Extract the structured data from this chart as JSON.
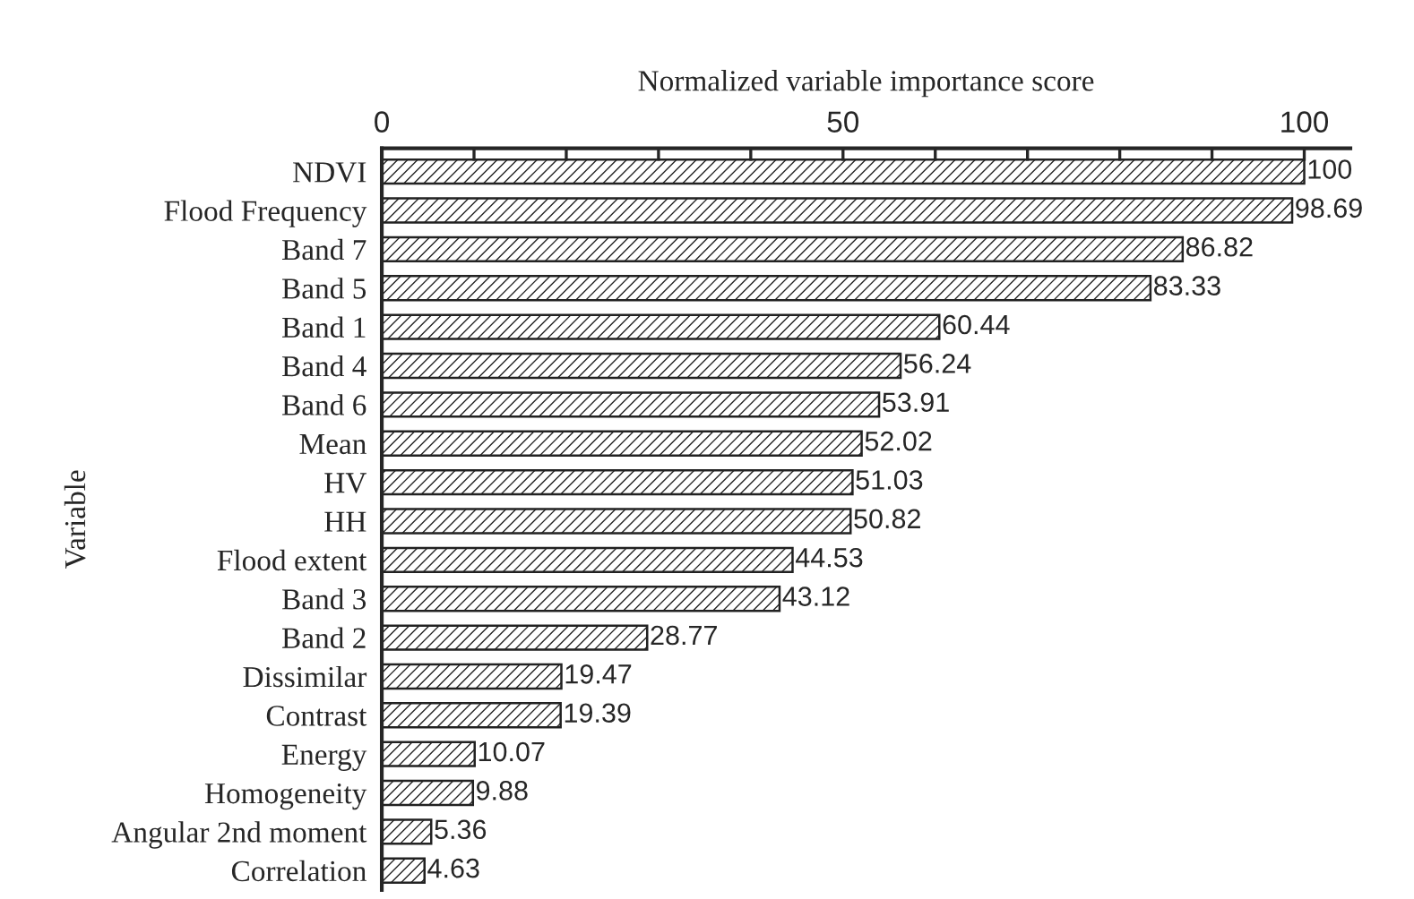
{
  "chart_data": {
    "type": "bar",
    "orientation": "horizontal",
    "xlabel": "Normalized variable importance score",
    "ylabel": "Variable",
    "categories": [
      "NDVI",
      "Flood Frequency",
      "Band 7",
      "Band 5",
      "Band 1",
      "Band 4",
      "Band 6",
      "Mean",
      "HV",
      "HH",
      "Flood extent",
      "Band 3",
      "Band 2",
      "Dissimilar",
      "Contrast",
      "Energy",
      "Homogeneity",
      "Angular 2nd moment",
      "Correlation"
    ],
    "values": [
      100,
      98.69,
      86.82,
      83.33,
      60.44,
      56.24,
      53.91,
      52.02,
      51.03,
      50.82,
      44.53,
      43.12,
      28.77,
      19.47,
      19.39,
      10.07,
      9.88,
      5.36,
      4.63
    ],
    "color": "#222222",
    "data_labels": true,
    "grid": false,
    "legend": false,
    "xlim": [
      0,
      105
    ],
    "xticks": [
      0,
      {
        "value": 10,
        "label": null
      },
      {
        "value": 20,
        "label": null
      },
      {
        "value": 30,
        "label": null
      },
      {
        "value": 40,
        "label": null
      },
      50,
      {
        "value": 60,
        "label": null
      },
      {
        "value": 70,
        "label": null
      },
      {
        "value": 80,
        "label": null
      },
      {
        "value": 90,
        "label": null
      },
      100
    ]
  }
}
